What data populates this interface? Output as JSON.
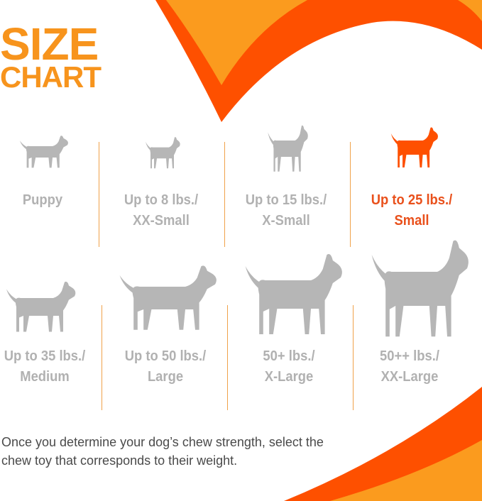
{
  "title": {
    "line1": "SIZE",
    "line2": "CHART"
  },
  "colors": {
    "title": "#f7941d",
    "dark_orange": "#fe5000",
    "light_orange": "#fb9b1e",
    "gray": "#b1b1b1",
    "highlight": "#e9501b"
  },
  "sizes": [
    {
      "line1": "Puppy",
      "line2": "",
      "highlighted": false
    },
    {
      "line1": "Up to 8 lbs./",
      "line2": "XX-Small",
      "highlighted": false
    },
    {
      "line1": "Up to 15 lbs./",
      "line2": "X-Small",
      "highlighted": false
    },
    {
      "line1": "Up to 25 lbs./",
      "line2": "Small",
      "highlighted": true
    },
    {
      "line1": "Up to 35 lbs./",
      "line2": "Medium",
      "highlighted": false
    },
    {
      "line1": "Up to 50 lbs./",
      "line2": "Large",
      "highlighted": false
    },
    {
      "line1": "50+ lbs./",
      "line2": "X-Large",
      "highlighted": false
    },
    {
      "line1": "50++ lbs./",
      "line2": "XX-Large",
      "highlighted": false
    }
  ],
  "footer": {
    "text": "Once you determine your dog’s chew strength, select the chew toy that corresponds to their weight."
  }
}
